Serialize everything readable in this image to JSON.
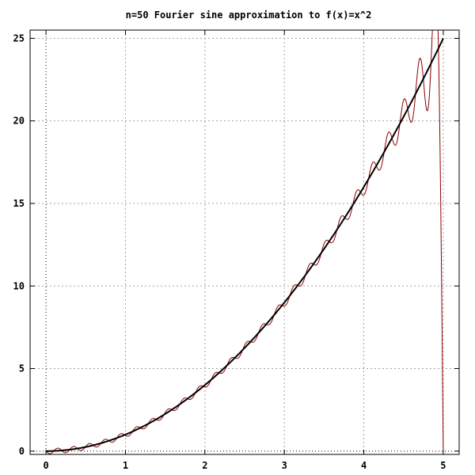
{
  "chart_data": {
    "type": "line",
    "title": "n=50 Fourier sine approximation to f(x)=x^2",
    "xlabel": "",
    "ylabel": "",
    "xlim": [
      -0.2,
      5.2
    ],
    "ylim": [
      -0.2,
      25.5
    ],
    "x_ticks": [
      0,
      1,
      2,
      3,
      4,
      5
    ],
    "y_ticks": [
      0,
      5,
      10,
      15,
      20,
      25
    ],
    "grid": true,
    "legend": "none",
    "series": [
      {
        "function": "x^2",
        "domain": [
          0,
          5
        ],
        "color": "#000000"
      },
      {
        "function": "Fourier sine series of x^2 on [0,5], 50 terms",
        "domain": [
          0,
          5
        ],
        "terms": 50,
        "color": "#8b0000"
      }
    ]
  }
}
